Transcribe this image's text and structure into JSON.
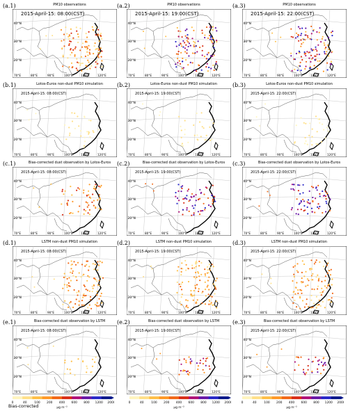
{
  "rows": [
    {
      "id": "a",
      "title": "PM<sub>10</sub> observations",
      "title_text": "PM10 observations",
      "kind": "obs"
    },
    {
      "id": "b",
      "title_text": "Lotos-Euros non-dust PM10 simulation",
      "kind": "lotos"
    },
    {
      "id": "c",
      "title_text": "Bias-corrected dust observation by Lotos-Euros",
      "kind": "bclotos"
    },
    {
      "id": "d",
      "title_text": "LSTM non-dust PM10 simulation",
      "kind": "lstm"
    },
    {
      "id": "e",
      "title_text": "Bias-corrected dust observation by LSTM",
      "kind": "bclstm"
    }
  ],
  "panels": [
    {
      "label": "(a.1)",
      "title": "PM10 observations",
      "time": "2015-April-15: 08:00(CST)"
    },
    {
      "label": "(a.2)",
      "title": "PM10 observations",
      "time": "2015-April-15: 19:00(CST)"
    },
    {
      "label": "(a.3)",
      "title": "PM10 observations",
      "time": "2015-April-15: 22:00(CST)"
    },
    {
      "label": "(b.1)",
      "title": "Lotos-Euros non-dust PM10 simulation",
      "time": "2015-April-15: 08:00(CST)"
    },
    {
      "label": "(b.2)",
      "title": "Lotos-Euros non-dust PM10 simulation",
      "time": "2015-April-15: 19:00(CST)"
    },
    {
      "label": "(b.3)",
      "title": "Lotos-Euros non-dust PM10 simulation",
      "time": "2015-April-15: 22:00(CST)"
    },
    {
      "label": "(c.1)",
      "title": "Bias-corrected dust observation by Lotos-Euros",
      "time": "2015-April-15: 08:00(CST)"
    },
    {
      "label": "(c.2)",
      "title": "Bias-corrected dust observation by Lotos-Euros",
      "time": "2015-April-15: 19:00(CST)"
    },
    {
      "label": "(c.3)",
      "title": "Bias-corrected dust observation by Lotos-Euros",
      "time": "2015-April-15: 22:00(CST)"
    },
    {
      "label": "(d.1)",
      "title": "LSTM non-dust PM10 simulation",
      "time": "2015-April-15: 08:00(CST)"
    },
    {
      "label": "(d.2)",
      "title": "LSTM non-dust PM10 simulation",
      "time": "2015-April-15: 19:00(CST)"
    },
    {
      "label": "(d.3)",
      "title": "LSTM non-dust PM10 simulation",
      "time": "2015-April-15: 22:00(CST)"
    },
    {
      "label": "(e.1)",
      "title": "Bias-corrected dust observation by LSTM",
      "time": "2015-April-15: 08:00(CST)"
    },
    {
      "label": "(e.2)",
      "title": "Bias-corrected dust observation by LSTM",
      "time": "2015-April-15: 19:00(CST)"
    },
    {
      "label": "(e.3)",
      "title": "Bias-corrected dust observation by LSTM",
      "time": "2015-April-15: 22:00(CST)"
    }
  ],
  "lat_ticks": [
    "40°N",
    "30°N",
    "20°N"
  ],
  "lon_ticks": [
    "70°E",
    "80°E",
    "90°E",
    "100°E",
    "110°E",
    "120°E"
  ],
  "colorbar": {
    "ticks": [
      "0",
      "40",
      "100",
      "200",
      "400",
      "600",
      "800",
      "1200",
      "2000"
    ],
    "unit": "μg m⁻³",
    "colors": [
      "#fff5c0",
      "#ffe08a",
      "#ffc04a",
      "#ff9a2a",
      "#f26a1a",
      "#d9301a",
      "#b0147a",
      "#6a1aa8",
      "#2a2ac8",
      "#0a1a8a"
    ]
  },
  "bottom_label": "Bias-corrected"
}
